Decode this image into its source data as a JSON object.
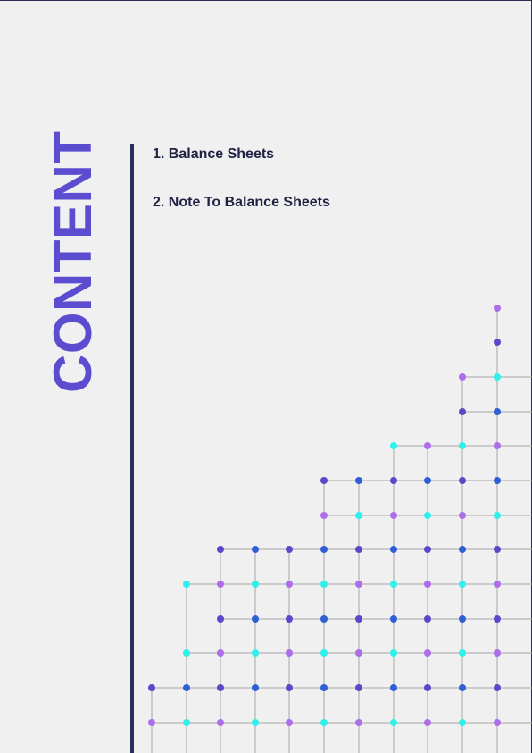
{
  "document": {
    "side_title": "CONTENT",
    "toc": [
      {
        "label": "1. Balance Sheets"
      },
      {
        "label": "2. Note To Balance Sheets"
      }
    ]
  },
  "colors": {
    "title": "#5c4ccf",
    "divider": "#2b2d5a",
    "toc_text": "#1f2241",
    "dot_palette": [
      "#ad6ee9",
      "#5a48c8",
      "#2ff0ea",
      "#2f5fd4"
    ],
    "grid_line": "#a6a6ac"
  }
}
